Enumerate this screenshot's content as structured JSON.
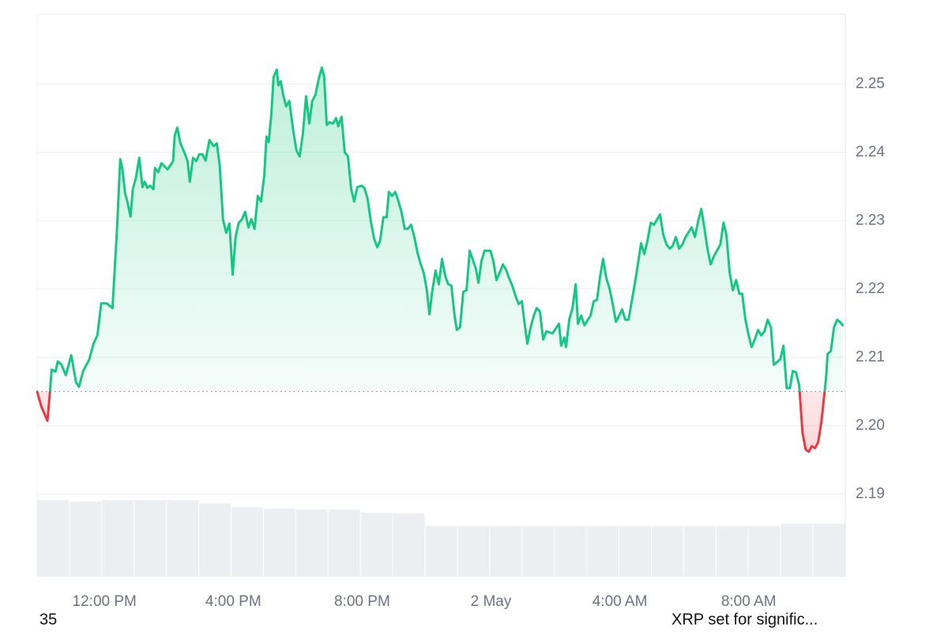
{
  "chart_data": {
    "type": "line",
    "color": "#16c784",
    "down_color": "#ea3943",
    "baseline": 2.205,
    "grid": true,
    "xlim": [
      9.91,
      35.0
    ],
    "ylim": [
      2.1779,
      2.2602
    ],
    "xticks": [
      {
        "value": 12,
        "label": "12:00 PM"
      },
      {
        "value": 16,
        "label": "4:00 PM"
      },
      {
        "value": 20,
        "label": "8:00 PM"
      },
      {
        "value": 24,
        "label": "2 May"
      },
      {
        "value": 28,
        "label": "4:00 AM"
      },
      {
        "value": 32,
        "label": "8:00 AM"
      }
    ],
    "yticks": [
      2.19,
      {
        "value": 2.2,
        "label": "2.20"
      },
      2.21,
      2.22,
      2.23,
      2.24,
      2.25
    ],
    "x": [
      9.91,
      10.04,
      10.23,
      10.31,
      10.36,
      10.48,
      10.55,
      10.67,
      10.8,
      10.97,
      11.12,
      11.21,
      11.34,
      11.53,
      11.66,
      11.78,
      11.9,
      12.07,
      12.25,
      12.39,
      12.49,
      12.56,
      12.64,
      12.71,
      12.81,
      12.88,
      12.98,
      13.08,
      13.18,
      13.25,
      13.33,
      13.42,
      13.52,
      13.57,
      13.67,
      13.77,
      13.96,
      14.13,
      14.18,
      14.26,
      14.36,
      14.48,
      14.58,
      14.65,
      14.75,
      14.85,
      14.94,
      15.04,
      15.14,
      15.26,
      15.39,
      15.49,
      15.58,
      15.68,
      15.78,
      15.88,
      15.98,
      16.07,
      16.17,
      16.27,
      16.37,
      16.47,
      16.56,
      16.66,
      16.76,
      16.86,
      16.96,
      17.03,
      17.1,
      17.18,
      17.25,
      17.35,
      17.4,
      17.47,
      17.55,
      17.64,
      17.74,
      17.86,
      17.96,
      18.06,
      18.16,
      18.26,
      18.36,
      18.45,
      18.55,
      18.65,
      18.75,
      18.82,
      18.9,
      18.99,
      19.09,
      19.19,
      19.26,
      19.36,
      19.46,
      19.56,
      19.66,
      19.75,
      19.85,
      19.98,
      20.07,
      20.17,
      20.27,
      20.37,
      20.47,
      20.56,
      20.66,
      20.76,
      20.83,
      20.93,
      21.03,
      21.13,
      21.23,
      21.32,
      21.42,
      21.52,
      21.62,
      21.72,
      21.82,
      21.91,
      22.01,
      22.09,
      22.18,
      22.28,
      22.38,
      22.48,
      22.58,
      22.67,
      22.77,
      22.87,
      22.94,
      23.04,
      23.14,
      23.24,
      23.34,
      23.44,
      23.53,
      23.61,
      23.71,
      23.8,
      23.98,
      24.07,
      24.17,
      24.27,
      24.37,
      24.47,
      24.56,
      24.66,
      24.76,
      24.86,
      24.96,
      25.03,
      25.13,
      25.23,
      25.33,
      25.42,
      25.52,
      25.62,
      25.72,
      25.91,
      26.11,
      26.18,
      26.28,
      26.33,
      26.43,
      26.53,
      26.63,
      26.7,
      26.8,
      26.9,
      27.09,
      27.19,
      27.29,
      27.39,
      27.48,
      27.58,
      27.68,
      27.78,
      27.88,
      27.98,
      28.07,
      28.17,
      28.27,
      28.37,
      28.47,
      28.57,
      28.66,
      28.76,
      28.86,
      28.96,
      29.06,
      29.25,
      29.35,
      29.45,
      29.55,
      29.64,
      29.74,
      29.84,
      29.94,
      30.04,
      30.23,
      30.33,
      30.43,
      30.53,
      30.63,
      30.72,
      30.82,
      30.92,
      31.12,
      31.22,
      31.31,
      31.41,
      31.51,
      31.61,
      31.71,
      31.8,
      31.9,
      32.0,
      32.09,
      32.19,
      32.29,
      32.39,
      32.49,
      32.59,
      32.69,
      32.78,
      32.98,
      33.08,
      33.18,
      33.28,
      33.37,
      33.47,
      33.57,
      33.67,
      33.77,
      33.87,
      33.96,
      34.06,
      34.16,
      34.26,
      34.36,
      34.41,
      34.45,
      34.55,
      34.65,
      34.75,
      34.85,
      34.92
    ],
    "values": [
      2.205,
      2.2028,
      2.2007,
      2.205,
      2.2082,
      2.2079,
      2.2094,
      2.2089,
      2.2074,
      2.2103,
      2.2063,
      2.2057,
      2.208,
      2.2097,
      2.212,
      2.2132,
      2.2179,
      2.2179,
      2.2172,
      2.2288,
      2.239,
      2.2375,
      2.234,
      2.2328,
      2.2306,
      2.2346,
      2.2363,
      2.2392,
      2.2349,
      2.2357,
      2.2348,
      2.2351,
      2.2346,
      2.2377,
      2.2371,
      2.2384,
      2.2375,
      2.2387,
      2.2424,
      2.2436,
      2.2413,
      2.24,
      2.2387,
      2.2357,
      2.2392,
      2.2387,
      2.2397,
      2.2397,
      2.2388,
      2.2418,
      2.2409,
      2.2413,
      2.238,
      2.2302,
      2.2282,
      2.2296,
      2.2221,
      2.2276,
      2.2297,
      2.2302,
      2.2313,
      2.229,
      2.2302,
      2.2288,
      2.2336,
      2.2328,
      2.2365,
      2.2423,
      2.2415,
      2.2455,
      2.251,
      2.2521,
      2.2498,
      2.2504,
      2.2484,
      2.2467,
      2.2475,
      2.2432,
      2.2403,
      2.2394,
      2.2427,
      2.2482,
      2.2442,
      2.2475,
      2.2484,
      2.2507,
      2.2524,
      2.2511,
      2.244,
      2.2444,
      2.2442,
      2.245,
      2.2438,
      2.2452,
      2.24,
      2.2394,
      2.2346,
      2.2328,
      2.2349,
      2.2351,
      2.2348,
      2.2332,
      2.2299,
      2.2274,
      2.2261,
      2.2271,
      2.2305,
      2.2305,
      2.2342,
      2.2336,
      2.2342,
      2.2328,
      2.2311,
      2.2288,
      2.2288,
      2.2294,
      2.2276,
      2.2253,
      2.2236,
      2.2224,
      2.2198,
      2.2163,
      2.2198,
      2.2227,
      2.2207,
      2.2244,
      2.2219,
      2.2207,
      2.2205,
      2.2161,
      2.214,
      2.2144,
      2.2196,
      2.2198,
      2.2256,
      2.2242,
      2.223,
      2.2209,
      2.2242,
      2.2256,
      2.2256,
      2.2242,
      2.2213,
      2.2224,
      2.2236,
      2.2228,
      2.2216,
      2.2205,
      2.219,
      2.2178,
      2.2182,
      2.2155,
      2.212,
      2.2144,
      2.2161,
      2.2172,
      2.2167,
      2.2126,
      2.2138,
      2.2135,
      2.2149,
      2.2117,
      2.2129,
      2.2115,
      2.2155,
      2.2172,
      2.2207,
      2.2149,
      2.2161,
      2.2147,
      2.2161,
      2.2182,
      2.2184,
      2.2219,
      2.2244,
      2.2216,
      2.2201,
      2.2178,
      2.2152,
      2.2161,
      2.217,
      2.2155,
      2.2155,
      2.2182,
      2.2209,
      2.2239,
      2.2267,
      2.2251,
      2.2271,
      2.2297,
      2.2294,
      2.2309,
      2.2279,
      2.2265,
      2.2259,
      2.2263,
      2.2276,
      2.2259,
      2.2265,
      2.2276,
      2.229,
      2.2276,
      2.2299,
      2.2317,
      2.2288,
      2.2259,
      2.2236,
      2.2248,
      2.2265,
      2.2297,
      2.2279,
      2.2224,
      2.2198,
      2.2213,
      2.2193,
      2.2193,
      2.2155,
      2.2132,
      2.2115,
      2.2126,
      2.214,
      2.2132,
      2.2138,
      2.2155,
      2.2144,
      2.2089,
      2.2097,
      2.2117,
      2.2055,
      2.2055,
      2.208,
      2.2078,
      2.2059,
      2.199,
      2.1965,
      2.1962,
      2.197,
      2.1967,
      2.1976,
      2.2006,
      2.205,
      2.2074,
      2.2105,
      2.2109,
      2.2144,
      2.2155,
      2.2151,
      2.2147
    ],
    "volume": {
      "color": "#eceef2",
      "vlim": [
        0,
        100
      ],
      "values": [
        97,
        95,
        97,
        97,
        97,
        93,
        88,
        86,
        85,
        85,
        81,
        80,
        64,
        64,
        64,
        64,
        64,
        64,
        64,
        64,
        64,
        64,
        64,
        67,
        67
      ]
    }
  },
  "footer": {
    "left": "35",
    "right": "XRP set for signific..."
  }
}
